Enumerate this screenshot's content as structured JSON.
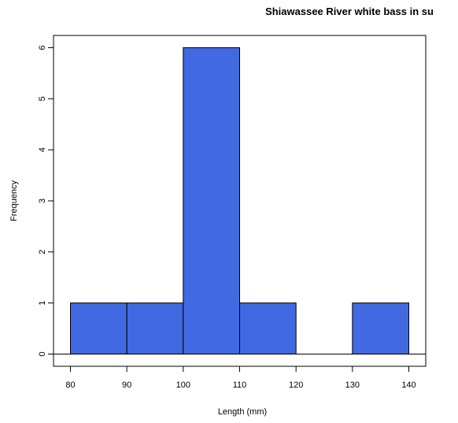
{
  "chart_data": {
    "type": "bar",
    "title": "Shiawassee River white bass in su",
    "xlabel": "Length (mm)",
    "ylabel": "Frequency",
    "bins": [
      {
        "start": 80,
        "end": 90,
        "count": 1
      },
      {
        "start": 90,
        "end": 100,
        "count": 1
      },
      {
        "start": 100,
        "end": 110,
        "count": 6
      },
      {
        "start": 110,
        "end": 120,
        "count": 1
      },
      {
        "start": 120,
        "end": 130,
        "count": 0
      },
      {
        "start": 130,
        "end": 140,
        "count": 1
      }
    ],
    "xlim": [
      77,
      143
    ],
    "ylim": [
      -0.24,
      6.24
    ],
    "x_ticks": [
      80,
      90,
      100,
      110,
      120,
      130,
      140
    ],
    "y_ticks": [
      0,
      1,
      2,
      3,
      4,
      5,
      6
    ],
    "bar_color": "#4169e1",
    "grid": false
  }
}
